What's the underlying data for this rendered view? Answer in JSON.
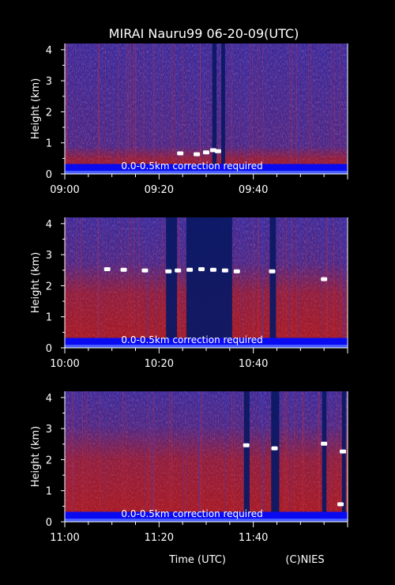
{
  "title": "MIRAI Nauru99 06-20-09(UTC)",
  "xlabel": "Time (UTC)",
  "credit": "(C)NIES",
  "colors": {
    "background": "#000000",
    "axis": "#ffffff",
    "low_signal": "#2a2aa8",
    "aerosol": "#b01818",
    "cloud": "#ffffff",
    "surface": "#0a0af0"
  },
  "chart_data": [
    {
      "type": "heatmap",
      "ylabel": "Height (km)",
      "ylim": [
        0,
        4.2
      ],
      "yticks": [
        "0",
        "1",
        "2",
        "3",
        "4"
      ],
      "xlim_minutes": [
        540,
        600
      ],
      "xticks": [
        {
          "minute": 540,
          "label": "09:00"
        },
        {
          "minute": 560,
          "label": "09:20"
        },
        {
          "minute": 580,
          "label": "09:40"
        }
      ],
      "annotation": "0.0-0.5km correction required",
      "aerosol_layer_top_km": 0.6,
      "cloud_detections": [
        {
          "minute": 564.5,
          "height_km": 0.65
        },
        {
          "minute": 568,
          "height_km": 0.62
        },
        {
          "minute": 570,
          "height_km": 0.68
        },
        {
          "minute": 571.5,
          "height_km": 0.75
        },
        {
          "minute": 572.5,
          "height_km": 0.72
        }
      ],
      "blocked_intervals": [
        {
          "start_minute": 571.3,
          "end_minute": 572.2
        },
        {
          "start_minute": 573.2,
          "end_minute": 574.0
        }
      ]
    },
    {
      "type": "heatmap",
      "ylabel": "Height (km)",
      "ylim": [
        0,
        4.2
      ],
      "yticks": [
        "0",
        "1",
        "2",
        "3",
        "4"
      ],
      "xlim_minutes": [
        600,
        660
      ],
      "xticks": [
        {
          "minute": 600,
          "label": "10:00"
        },
        {
          "minute": 620,
          "label": "10:20"
        },
        {
          "minute": 640,
          "label": "10:40"
        }
      ],
      "annotation": "0.0-0.5km correction required",
      "aerosol_layer_top_km": 2.2,
      "cloud_detections": [
        {
          "minute": 609,
          "height_km": 2.52
        },
        {
          "minute": 612.5,
          "height_km": 2.5
        },
        {
          "minute": 617,
          "height_km": 2.48
        },
        {
          "minute": 622,
          "height_km": 2.45
        },
        {
          "minute": 624,
          "height_km": 2.48
        },
        {
          "minute": 626.5,
          "height_km": 2.5
        },
        {
          "minute": 629,
          "height_km": 2.52
        },
        {
          "minute": 631.5,
          "height_km": 2.5
        },
        {
          "minute": 634,
          "height_km": 2.48
        },
        {
          "minute": 636.5,
          "height_km": 2.45
        },
        {
          "minute": 644,
          "height_km": 2.45
        },
        {
          "minute": 655,
          "height_km": 2.2
        }
      ],
      "blocked_intervals": [
        {
          "start_minute": 621.5,
          "end_minute": 623.8
        },
        {
          "start_minute": 625.8,
          "end_minute": 635.5
        },
        {
          "start_minute": 643.5,
          "end_minute": 644.8
        }
      ]
    },
    {
      "type": "heatmap",
      "ylabel": "Height (km)",
      "ylim": [
        0,
        4.2
      ],
      "yticks": [
        "0",
        "1",
        "2",
        "3",
        "4"
      ],
      "xlim_minutes": [
        660,
        720
      ],
      "xticks": [
        {
          "minute": 660,
          "label": "11:00"
        },
        {
          "minute": 680,
          "label": "11:20"
        },
        {
          "minute": 700,
          "label": "11:40"
        }
      ],
      "annotation": "0.0-0.5km correction required",
      "aerosol_layer_top_km": 2.5,
      "cloud_detections": [
        {
          "minute": 698.5,
          "height_km": 2.45
        },
        {
          "minute": 704.5,
          "height_km": 2.35
        },
        {
          "minute": 715,
          "height_km": 2.5
        },
        {
          "minute": 719,
          "height_km": 2.25
        },
        {
          "minute": 718.5,
          "height_km": 0.55
        }
      ],
      "blocked_intervals": [
        {
          "start_minute": 698,
          "end_minute": 699.2
        },
        {
          "start_minute": 703.8,
          "end_minute": 705.5
        },
        {
          "start_minute": 714.6,
          "end_minute": 715.5
        },
        {
          "start_minute": 718.8,
          "end_minute": 719.6
        }
      ]
    }
  ]
}
